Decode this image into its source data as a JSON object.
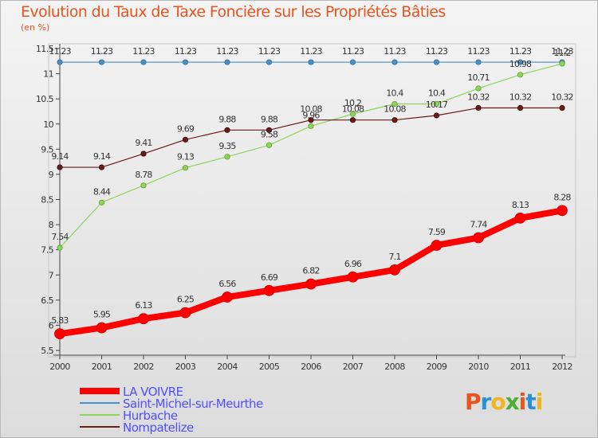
{
  "page": {
    "title": "Evolution du Taux de Taxe Foncière sur les Propriétés Bâties",
    "unit": "(en %)"
  },
  "logo": {
    "letters": [
      "P",
      "r",
      "o",
      "x",
      "i",
      "t",
      "i"
    ],
    "colors": [
      "#e8541c",
      "#2a8fd6",
      "#f2b51b",
      "#4caf32",
      "#e8541c",
      "#2a8fd6",
      "#f2b51b"
    ]
  },
  "chart_data": {
    "type": "line",
    "title": "Evolution du Taux de Taxe Foncière sur les Propriétés Bâties",
    "ylabel": "(en %)",
    "xlabel": "",
    "x": [
      "2000",
      "2001",
      "2002",
      "2003",
      "2004",
      "2005",
      "2006",
      "2007",
      "2008",
      "2009",
      "2010",
      "2011",
      "2012"
    ],
    "ylim": [
      5.5,
      11.5
    ],
    "yticks": [
      "5.5",
      "6",
      "6.5",
      "7",
      "7.5",
      "8",
      "8.5",
      "9",
      "9.5",
      "10",
      "10.5",
      "11",
      "11.5"
    ],
    "grid": false,
    "legend": "bottom-left",
    "series": [
      {
        "name": "LA VOIVRE",
        "color": "#ff0000",
        "values": [
          5.83,
          5.95,
          6.13,
          6.25,
          6.56,
          6.69,
          6.82,
          6.96,
          7.1,
          7.59,
          7.74,
          8.13,
          8.28
        ],
        "labels": [
          "5.83",
          "5.95",
          "6.13",
          "6.25",
          "6.56",
          "6.69",
          "6.82",
          "6.96",
          "7.1",
          "7.59",
          "7.74",
          "8.13",
          "8.28"
        ]
      },
      {
        "name": "Saint-Michel-sur-Meurthe",
        "color": "#4a90c8",
        "values": [
          11.23,
          11.23,
          11.23,
          11.23,
          11.23,
          11.23,
          11.23,
          11.23,
          11.23,
          11.23,
          11.23,
          11.23,
          11.23
        ],
        "labels": [
          "11.23",
          "11.23",
          "11.23",
          "11.23",
          "11.23",
          "11.23",
          "11.23",
          "11.23",
          "11.23",
          "11.23",
          "11.23",
          "11.23",
          "11.23"
        ]
      },
      {
        "name": "Hurbache",
        "color": "#8fd45a",
        "values": [
          7.54,
          8.44,
          8.78,
          9.13,
          9.35,
          9.58,
          9.96,
          10.2,
          10.4,
          10.4,
          10.71,
          10.98,
          11.2
        ],
        "labels": [
          "7.54",
          "8.44",
          "8.78",
          "9.13",
          "9.35",
          "9.58",
          "9.96",
          "10.2",
          "10.4",
          "10.4",
          "10.71",
          "10.98",
          "11.2"
        ]
      },
      {
        "name": "Nompatelize",
        "color": "#6b1a1a",
        "values": [
          9.14,
          9.14,
          9.41,
          9.69,
          9.88,
          9.88,
          10.08,
          10.08,
          10.08,
          10.17,
          10.32,
          10.32,
          10.32
        ],
        "labels": [
          "9.14",
          "9.14",
          "9.41",
          "9.69",
          "9.88",
          "9.88",
          "10.08",
          "10.08",
          "10.08",
          "10.17",
          "10.32",
          "10.32",
          "10.32"
        ]
      }
    ]
  }
}
